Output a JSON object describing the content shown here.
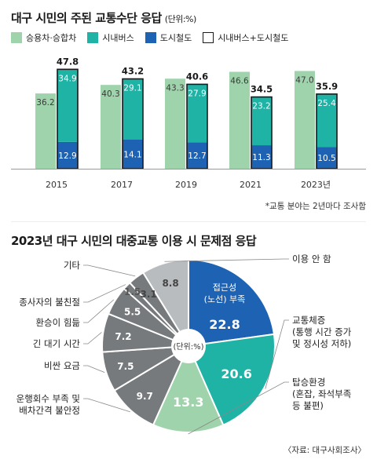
{
  "chart_data": [
    {
      "type": "bar",
      "title": "대구 시민의 주된 교통수단 응답",
      "unit": "(단위:%)",
      "categories": [
        "2015",
        "2017",
        "2019",
        "2021",
        "2023년"
      ],
      "legend": [
        "승용차·승합차",
        "시내버스",
        "도시철도",
        "시내버스+도시철도"
      ],
      "series": [
        {
          "name": "승용차·승합차",
          "values": [
            36.2,
            40.3,
            43.3,
            46.6,
            47.0
          ]
        },
        {
          "name": "시내버스",
          "values": [
            34.9,
            29.1,
            27.9,
            23.2,
            25.4
          ]
        },
        {
          "name": "도시철도",
          "values": [
            12.9,
            14.1,
            12.7,
            11.3,
            10.5
          ]
        }
      ],
      "totals": [
        47.8,
        43.2,
        40.6,
        34.5,
        35.9
      ],
      "value_labels": {
        "car": [
          "36.2",
          "40.3",
          "43.3",
          "46.6",
          "47.0"
        ],
        "bus": [
          "34.9",
          "29.1",
          "27.9",
          "23.2",
          "25.4"
        ],
        "rail": [
          "12.9",
          "14.1",
          "12.7",
          "11.3",
          "10.5"
        ],
        "total": [
          "47.8",
          "43.2",
          "40.6",
          "34.5",
          "35.9"
        ]
      },
      "colors": {
        "car": "#9fd3ac",
        "bus": "#1fb3a6",
        "rail": "#1d62b3",
        "outline": "#1a1a1a"
      },
      "note": "*교통 분야는 2년마다 조사함"
    },
    {
      "type": "pie",
      "title": "2023년 대구 시민의 대중교통 이용 시 문제점 응답",
      "center_label": "(단위:%)",
      "slices": [
        {
          "label": "접근성 (노선) 부족",
          "value": 22.8
        },
        {
          "label": "교통체증 (통행 시간 증가 및 정시성 저하)",
          "value": 20.6
        },
        {
          "label": "탑승환경 (혼잡, 좌석부족 등 불편)",
          "value": 13.3
        },
        {
          "label": "운행회수 부족 및 배차간격 불안정",
          "value": 9.7
        },
        {
          "label": "비싼 요금",
          "value": 7.5
        },
        {
          "label": "긴 대기 시간",
          "value": 7.2
        },
        {
          "label": "환승이 힘듦",
          "value": 5.5
        },
        {
          "label": "종사자의 불친절",
          "value": 1.5
        },
        {
          "label": "기타",
          "value": 3.1
        },
        {
          "label": "이용 안 함",
          "value": 8.8
        }
      ],
      "value_labels": [
        "22.8",
        "20.6",
        "13.3",
        "9.7",
        "7.5",
        "7.2",
        "5.5",
        "1.5",
        "3.1",
        "8.8"
      ],
      "label_lines": [
        [
          "접근성",
          "(노선) 부족"
        ],
        [
          "교통체증",
          "(통행 시간 증가",
          "및 정시성 저하)"
        ],
        [
          "탑승환경",
          "(혼잡, 좌석부족",
          "등 불편)"
        ],
        [
          "운행회수 부족 및",
          "배차간격 불안정"
        ],
        [
          "비싼 요금"
        ],
        [
          "긴 대기 시간"
        ],
        [
          "환승이 힘듦"
        ],
        [
          "종사자의 불친절"
        ],
        [
          "기타"
        ],
        [
          "이용 안 함"
        ]
      ],
      "colors": {
        "blue": "#1d62b3",
        "teal": "#1fb3a6",
        "green": "#9fd3ac",
        "darkgray": "#777a7c",
        "lightgray": "#b9bcbf"
      },
      "source": "〈자료: 대구사회조사〉"
    }
  ]
}
